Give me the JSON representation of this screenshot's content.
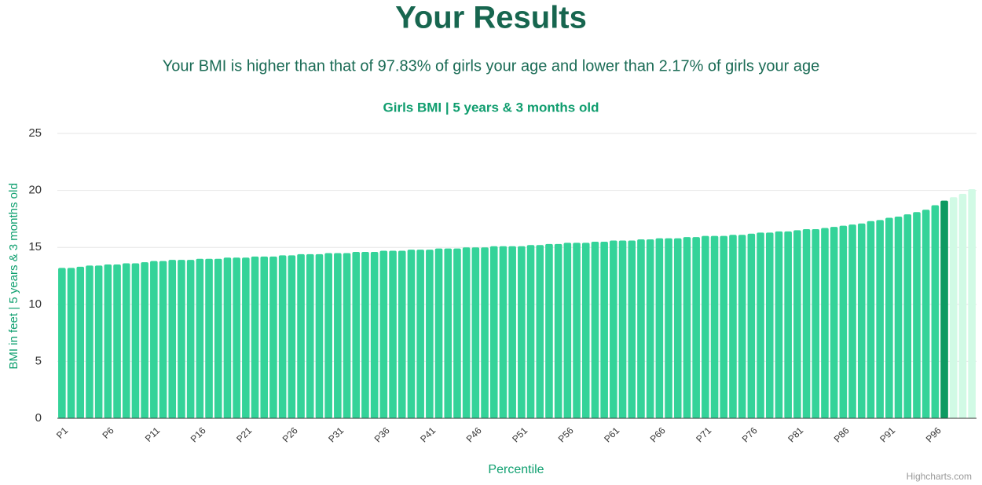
{
  "heading": "Your Results",
  "message": "Your BMI is higher than that of 97.83% of girls your age and lower than 2.17% of girls your age",
  "credit": "Highcharts.com",
  "chart_data": {
    "type": "bar",
    "title": "Girls BMI | 5 years & 3 months old",
    "x_label": "Percentile",
    "y_label": "BMI in feet | 5 years & 3 months old",
    "categories": [
      "P1",
      null,
      null,
      null,
      null,
      "P6",
      null,
      null,
      null,
      null,
      "P11",
      null,
      null,
      null,
      null,
      "P16",
      null,
      null,
      null,
      null,
      "P21",
      null,
      null,
      null,
      null,
      "P26",
      null,
      null,
      null,
      null,
      "P31",
      null,
      null,
      null,
      null,
      "P36",
      null,
      null,
      null,
      null,
      "P41",
      null,
      null,
      null,
      null,
      "P46",
      null,
      null,
      null,
      null,
      "P51",
      null,
      null,
      null,
      null,
      "P56",
      null,
      null,
      null,
      null,
      "P61",
      null,
      null,
      null,
      null,
      "P66",
      null,
      null,
      null,
      null,
      "P71",
      null,
      null,
      null,
      null,
      "P76",
      null,
      null,
      null,
      null,
      "P81",
      null,
      null,
      null,
      null,
      "P86",
      null,
      null,
      null,
      null,
      "P91",
      null,
      null,
      null,
      null,
      "P96",
      null,
      null,
      null,
      null
    ],
    "values": [
      13.2,
      13.2,
      13.3,
      13.4,
      13.4,
      13.5,
      13.5,
      13.6,
      13.6,
      13.7,
      13.8,
      13.8,
      13.9,
      13.9,
      13.9,
      14.0,
      14.0,
      14.0,
      14.1,
      14.1,
      14.1,
      14.2,
      14.2,
      14.2,
      14.3,
      14.3,
      14.4,
      14.4,
      14.4,
      14.5,
      14.5,
      14.5,
      14.6,
      14.6,
      14.6,
      14.7,
      14.7,
      14.7,
      14.8,
      14.8,
      14.8,
      14.9,
      14.9,
      14.9,
      15.0,
      15.0,
      15.0,
      15.1,
      15.1,
      15.1,
      15.1,
      15.2,
      15.2,
      15.3,
      15.3,
      15.4,
      15.4,
      15.4,
      15.5,
      15.5,
      15.6,
      15.6,
      15.6,
      15.7,
      15.7,
      15.8,
      15.8,
      15.8,
      15.9,
      15.9,
      16.0,
      16.0,
      16.0,
      16.1,
      16.1,
      16.2,
      16.3,
      16.3,
      16.4,
      16.4,
      16.5,
      16.6,
      16.6,
      16.7,
      16.8,
      16.9,
      17.0,
      17.1,
      17.3,
      17.4,
      17.6,
      17.7,
      17.9,
      18.1,
      18.3,
      18.7,
      19.1,
      19.4,
      19.7,
      20.1
    ],
    "colors": [
      "#34d399",
      "#34d399",
      "#34d399",
      "#34d399",
      "#34d399",
      "#34d399",
      "#34d399",
      "#34d399",
      "#34d399",
      "#34d399",
      "#34d399",
      "#34d399",
      "#34d399",
      "#34d399",
      "#34d399",
      "#34d399",
      "#34d399",
      "#34d399",
      "#34d399",
      "#34d399",
      "#34d399",
      "#34d399",
      "#34d399",
      "#34d399",
      "#34d399",
      "#34d399",
      "#34d399",
      "#34d399",
      "#34d399",
      "#34d399",
      "#34d399",
      "#34d399",
      "#34d399",
      "#34d399",
      "#34d399",
      "#34d399",
      "#34d399",
      "#34d399",
      "#34d399",
      "#34d399",
      "#34d399",
      "#34d399",
      "#34d399",
      "#34d399",
      "#34d399",
      "#34d399",
      "#34d399",
      "#34d399",
      "#34d399",
      "#34d399",
      "#34d399",
      "#34d399",
      "#34d399",
      "#34d399",
      "#34d399",
      "#34d399",
      "#34d399",
      "#34d399",
      "#34d399",
      "#34d399",
      "#34d399",
      "#34d399",
      "#34d399",
      "#34d399",
      "#34d399",
      "#34d399",
      "#34d399",
      "#34d399",
      "#34d399",
      "#34d399",
      "#34d399",
      "#34d399",
      "#34d399",
      "#34d399",
      "#34d399",
      "#34d399",
      "#34d399",
      "#34d399",
      "#34d399",
      "#34d399",
      "#34d399",
      "#34d399",
      "#34d399",
      "#34d399",
      "#34d399",
      "#34d399",
      "#34d399",
      "#34d399",
      "#34d399",
      "#34d399",
      "#34d399",
      "#34d399",
      "#34d399",
      "#34d399",
      "#34d399",
      "#34d399",
      "#0e9a62",
      "#d1fae5",
      "#d1fae5",
      "#d1fae5"
    ],
    "ylim": [
      0,
      25
    ],
    "yticks": [
      0,
      5,
      10,
      15,
      20,
      25
    ],
    "grid": true
  }
}
